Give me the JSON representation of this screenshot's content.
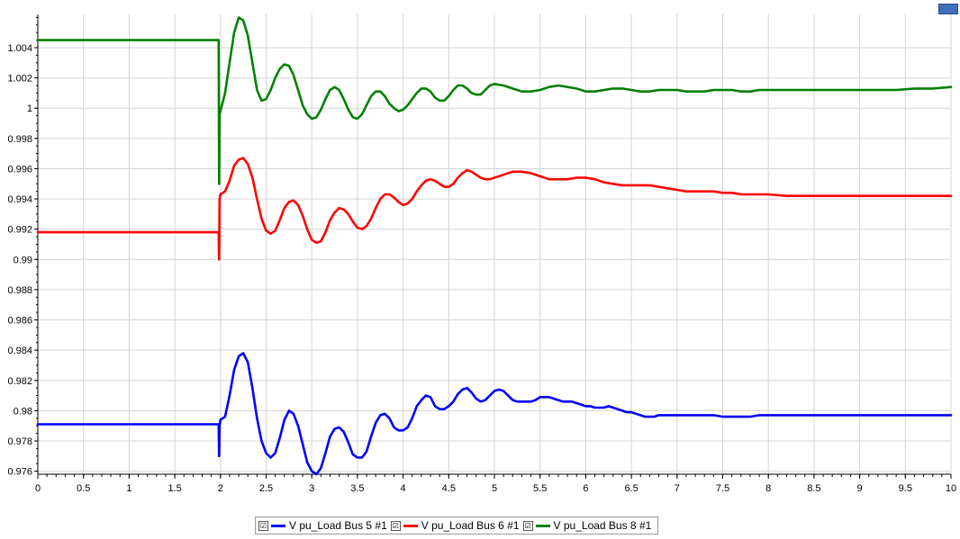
{
  "chart_data": {
    "type": "line",
    "title": "",
    "xlabel": "",
    "ylabel": "",
    "xlim": [
      0,
      10
    ],
    "ylim": [
      0.9758,
      1.0062
    ],
    "grid": true,
    "legend_position": "bottom",
    "x_ticks": [
      "0",
      "0.5",
      "1",
      "1.5",
      "2",
      "2.5",
      "3",
      "3.5",
      "4",
      "4.5",
      "5",
      "5.5",
      "6",
      "6.5",
      "7",
      "7.5",
      "8",
      "8.5",
      "9",
      "9.5",
      "10"
    ],
    "y_ticks": [
      "0.976",
      "0.978",
      "0.98",
      "0.982",
      "0.984",
      "0.986",
      "0.988",
      "0.99",
      "0.992",
      "0.994",
      "0.996",
      "0.998",
      "1",
      "1.002",
      "1.004"
    ],
    "series": [
      {
        "name": "V pu_Load Bus 5 #1",
        "color": "#0000ff",
        "x": [
          0,
          1.98,
          1.985,
          1.99,
          2.0,
          2.05,
          2.1,
          2.15,
          2.2,
          2.25,
          2.3,
          2.35,
          2.4,
          2.45,
          2.5,
          2.55,
          2.6,
          2.65,
          2.7,
          2.75,
          2.8,
          2.85,
          2.9,
          2.95,
          3.0,
          3.05,
          3.1,
          3.15,
          3.2,
          3.25,
          3.3,
          3.35,
          3.4,
          3.45,
          3.5,
          3.55,
          3.6,
          3.65,
          3.7,
          3.75,
          3.8,
          3.85,
          3.9,
          3.95,
          4.0,
          4.05,
          4.1,
          4.15,
          4.2,
          4.25,
          4.3,
          4.35,
          4.4,
          4.45,
          4.5,
          4.55,
          4.6,
          4.65,
          4.7,
          4.75,
          4.8,
          4.85,
          4.9,
          4.95,
          5.0,
          5.05,
          5.1,
          5.15,
          5.2,
          5.25,
          5.3,
          5.35,
          5.4,
          5.45,
          5.5,
          5.55,
          5.6,
          5.65,
          5.7,
          5.75,
          5.8,
          5.85,
          5.9,
          5.95,
          6.0,
          6.05,
          6.1,
          6.15,
          6.2,
          6.25,
          6.3,
          6.35,
          6.4,
          6.45,
          6.5,
          6.55,
          6.6,
          6.65,
          6.7,
          6.75,
          6.8,
          6.85,
          6.9,
          6.95,
          7.0,
          7.1,
          7.2,
          7.3,
          7.4,
          7.5,
          7.6,
          7.7,
          7.8,
          7.9,
          8.0,
          8.1,
          8.2,
          8.3,
          8.4,
          8.5,
          8.6,
          8.7,
          8.8,
          8.9,
          9.0,
          9.1,
          9.2,
          9.3,
          9.4,
          9.5,
          9.6,
          9.7,
          9.8,
          9.9,
          10.0
        ],
        "y": [
          0.9791,
          0.9791,
          0.977,
          0.979,
          0.9794,
          0.9796,
          0.981,
          0.9827,
          0.9836,
          0.9838,
          0.9832,
          0.9815,
          0.9795,
          0.978,
          0.9772,
          0.9769,
          0.9772,
          0.9782,
          0.9794,
          0.98,
          0.9798,
          0.979,
          0.9778,
          0.9766,
          0.976,
          0.9758,
          0.9762,
          0.9772,
          0.9783,
          0.9788,
          0.9789,
          0.9786,
          0.9779,
          0.9771,
          0.9769,
          0.9769,
          0.9773,
          0.9783,
          0.9792,
          0.9797,
          0.9798,
          0.9795,
          0.9789,
          0.9787,
          0.9787,
          0.9789,
          0.9795,
          0.9803,
          0.9807,
          0.981,
          0.9809,
          0.9803,
          0.9801,
          0.9801,
          0.9803,
          0.9806,
          0.9811,
          0.9814,
          0.9815,
          0.9812,
          0.9808,
          0.9806,
          0.9807,
          0.981,
          0.9813,
          0.9814,
          0.9813,
          0.981,
          0.9807,
          0.9806,
          0.9806,
          0.9806,
          0.9806,
          0.9807,
          0.9809,
          0.9809,
          0.9809,
          0.9808,
          0.9807,
          0.9806,
          0.9806,
          0.9806,
          0.9805,
          0.9804,
          0.9803,
          0.9803,
          0.9802,
          0.9802,
          0.9802,
          0.9803,
          0.9802,
          0.9801,
          0.98,
          0.9799,
          0.9799,
          0.9798,
          0.9797,
          0.9796,
          0.9796,
          0.9796,
          0.9797,
          0.9797,
          0.9797,
          0.9797,
          0.9797,
          0.9797,
          0.9797,
          0.9797,
          0.9797,
          0.9796,
          0.9796,
          0.9796,
          0.9796,
          0.9797,
          0.9797,
          0.9797,
          0.9797,
          0.9797,
          0.9797,
          0.9797,
          0.9797,
          0.9797,
          0.9797,
          0.9797,
          0.9797,
          0.9797,
          0.9797,
          0.9797,
          0.9797,
          0.9797,
          0.9797,
          0.9797,
          0.9797,
          0.9797,
          0.9797
        ]
      },
      {
        "name": "V pu_Load Bus 6 #1",
        "color": "#ff0000",
        "x": [
          0,
          1.98,
          1.985,
          1.99,
          2.0,
          2.05,
          2.1,
          2.15,
          2.2,
          2.25,
          2.3,
          2.35,
          2.4,
          2.45,
          2.5,
          2.55,
          2.6,
          2.65,
          2.7,
          2.75,
          2.8,
          2.85,
          2.9,
          2.95,
          3.0,
          3.05,
          3.1,
          3.15,
          3.2,
          3.25,
          3.3,
          3.35,
          3.4,
          3.45,
          3.5,
          3.55,
          3.6,
          3.65,
          3.7,
          3.75,
          3.8,
          3.85,
          3.9,
          3.95,
          4.0,
          4.05,
          4.1,
          4.15,
          4.2,
          4.25,
          4.3,
          4.35,
          4.4,
          4.45,
          4.5,
          4.55,
          4.6,
          4.65,
          4.7,
          4.75,
          4.8,
          4.85,
          4.9,
          4.95,
          5.0,
          5.1,
          5.2,
          5.3,
          5.4,
          5.5,
          5.6,
          5.7,
          5.8,
          5.9,
          6.0,
          6.1,
          6.2,
          6.3,
          6.4,
          6.5,
          6.6,
          6.7,
          6.8,
          6.9,
          7.0,
          7.1,
          7.2,
          7.3,
          7.4,
          7.5,
          7.6,
          7.7,
          7.8,
          7.9,
          8.0,
          8.2,
          8.4,
          8.6,
          8.8,
          9.0,
          9.2,
          9.4,
          9.6,
          9.8,
          10.0
        ],
        "y": [
          0.9918,
          0.9918,
          0.99,
          0.994,
          0.9943,
          0.9945,
          0.9952,
          0.9962,
          0.9966,
          0.9967,
          0.9963,
          0.9954,
          0.994,
          0.9927,
          0.9919,
          0.9917,
          0.9919,
          0.9926,
          0.9934,
          0.9938,
          0.9939,
          0.9936,
          0.9929,
          0.992,
          0.9913,
          0.9911,
          0.9912,
          0.9918,
          0.9926,
          0.9931,
          0.9934,
          0.9933,
          0.993,
          0.9925,
          0.9921,
          0.992,
          0.9922,
          0.9927,
          0.9934,
          0.994,
          0.9943,
          0.9943,
          0.9941,
          0.9938,
          0.9936,
          0.9937,
          0.994,
          0.9945,
          0.9949,
          0.9952,
          0.9953,
          0.9952,
          0.995,
          0.9948,
          0.9948,
          0.995,
          0.9954,
          0.9957,
          0.9959,
          0.9958,
          0.9956,
          0.9954,
          0.9953,
          0.9953,
          0.9954,
          0.9956,
          0.9958,
          0.9958,
          0.9957,
          0.9955,
          0.9953,
          0.9953,
          0.9953,
          0.9954,
          0.9954,
          0.9953,
          0.9951,
          0.995,
          0.9949,
          0.9949,
          0.9949,
          0.9949,
          0.9948,
          0.9947,
          0.9946,
          0.9945,
          0.9945,
          0.9945,
          0.9945,
          0.9944,
          0.9944,
          0.9943,
          0.9943,
          0.9943,
          0.9943,
          0.9942,
          0.9942,
          0.9942,
          0.9942,
          0.9942,
          0.9942,
          0.9942,
          0.9942,
          0.9942,
          0.9942
        ]
      },
      {
        "name": "V pu_Load Bus 8 #1",
        "color": "#008000",
        "x": [
          0,
          1.98,
          1.985,
          1.99,
          2.0,
          2.05,
          2.1,
          2.15,
          2.2,
          2.25,
          2.3,
          2.35,
          2.4,
          2.45,
          2.5,
          2.55,
          2.6,
          2.65,
          2.7,
          2.75,
          2.8,
          2.85,
          2.9,
          2.95,
          3.0,
          3.05,
          3.1,
          3.15,
          3.2,
          3.25,
          3.3,
          3.35,
          3.4,
          3.45,
          3.5,
          3.55,
          3.6,
          3.65,
          3.7,
          3.75,
          3.8,
          3.85,
          3.9,
          3.95,
          4.0,
          4.05,
          4.1,
          4.15,
          4.2,
          4.25,
          4.3,
          4.35,
          4.4,
          4.45,
          4.5,
          4.55,
          4.6,
          4.65,
          4.7,
          4.75,
          4.8,
          4.85,
          4.9,
          4.95,
          5.0,
          5.1,
          5.2,
          5.3,
          5.4,
          5.5,
          5.6,
          5.7,
          5.8,
          5.9,
          6.0,
          6.1,
          6.2,
          6.3,
          6.4,
          6.5,
          6.6,
          6.7,
          6.8,
          6.9,
          7.0,
          7.1,
          7.2,
          7.3,
          7.4,
          7.5,
          7.6,
          7.7,
          7.8,
          7.9,
          8.0,
          8.2,
          8.4,
          8.6,
          8.8,
          9.0,
          9.2,
          9.4,
          9.6,
          9.8,
          10.0
        ],
        "y": [
          1.0045,
          1.0045,
          0.995,
          0.9996,
          0.9998,
          1.001,
          1.003,
          1.005,
          1.006,
          1.0058,
          1.0048,
          1.003,
          1.0012,
          1.0005,
          1.0006,
          1.0012,
          1.002,
          1.0026,
          1.0029,
          1.0028,
          1.0022,
          1.0012,
          1.0002,
          0.9996,
          0.9993,
          0.9994,
          0.9999,
          1.0006,
          1.0012,
          1.0014,
          1.0012,
          1.0006,
          0.9999,
          0.9994,
          0.9993,
          0.9996,
          1.0002,
          1.0008,
          1.0011,
          1.0011,
          1.0008,
          1.0003,
          1.0,
          0.9998,
          0.9999,
          1.0002,
          1.0006,
          1.001,
          1.0013,
          1.0013,
          1.0011,
          1.0007,
          1.0005,
          1.0005,
          1.0008,
          1.0012,
          1.0015,
          1.0015,
          1.0013,
          1.001,
          1.0009,
          1.0009,
          1.0012,
          1.0015,
          1.0016,
          1.0015,
          1.0013,
          1.0011,
          1.0011,
          1.0012,
          1.0014,
          1.0015,
          1.0014,
          1.0013,
          1.0011,
          1.0011,
          1.0012,
          1.0013,
          1.0013,
          1.0012,
          1.0011,
          1.0011,
          1.0012,
          1.0012,
          1.0012,
          1.0011,
          1.0011,
          1.0011,
          1.0012,
          1.0012,
          1.0012,
          1.0011,
          1.0011,
          1.0012,
          1.0012,
          1.0012,
          1.0012,
          1.0012,
          1.0012,
          1.0012,
          1.0012,
          1.0012,
          1.0013,
          1.0013,
          1.0014
        ]
      }
    ]
  },
  "legend": {
    "items": [
      {
        "label": "V pu_Load Bus 5 #1",
        "check": "☑",
        "color": "#0000ff"
      },
      {
        "label": "V pu_Load Bus 6 #1",
        "check": "☑",
        "color": "#ff0000"
      },
      {
        "label": "V pu_Load Bus 8 #1",
        "check": "☑",
        "color": "#008000"
      }
    ]
  }
}
